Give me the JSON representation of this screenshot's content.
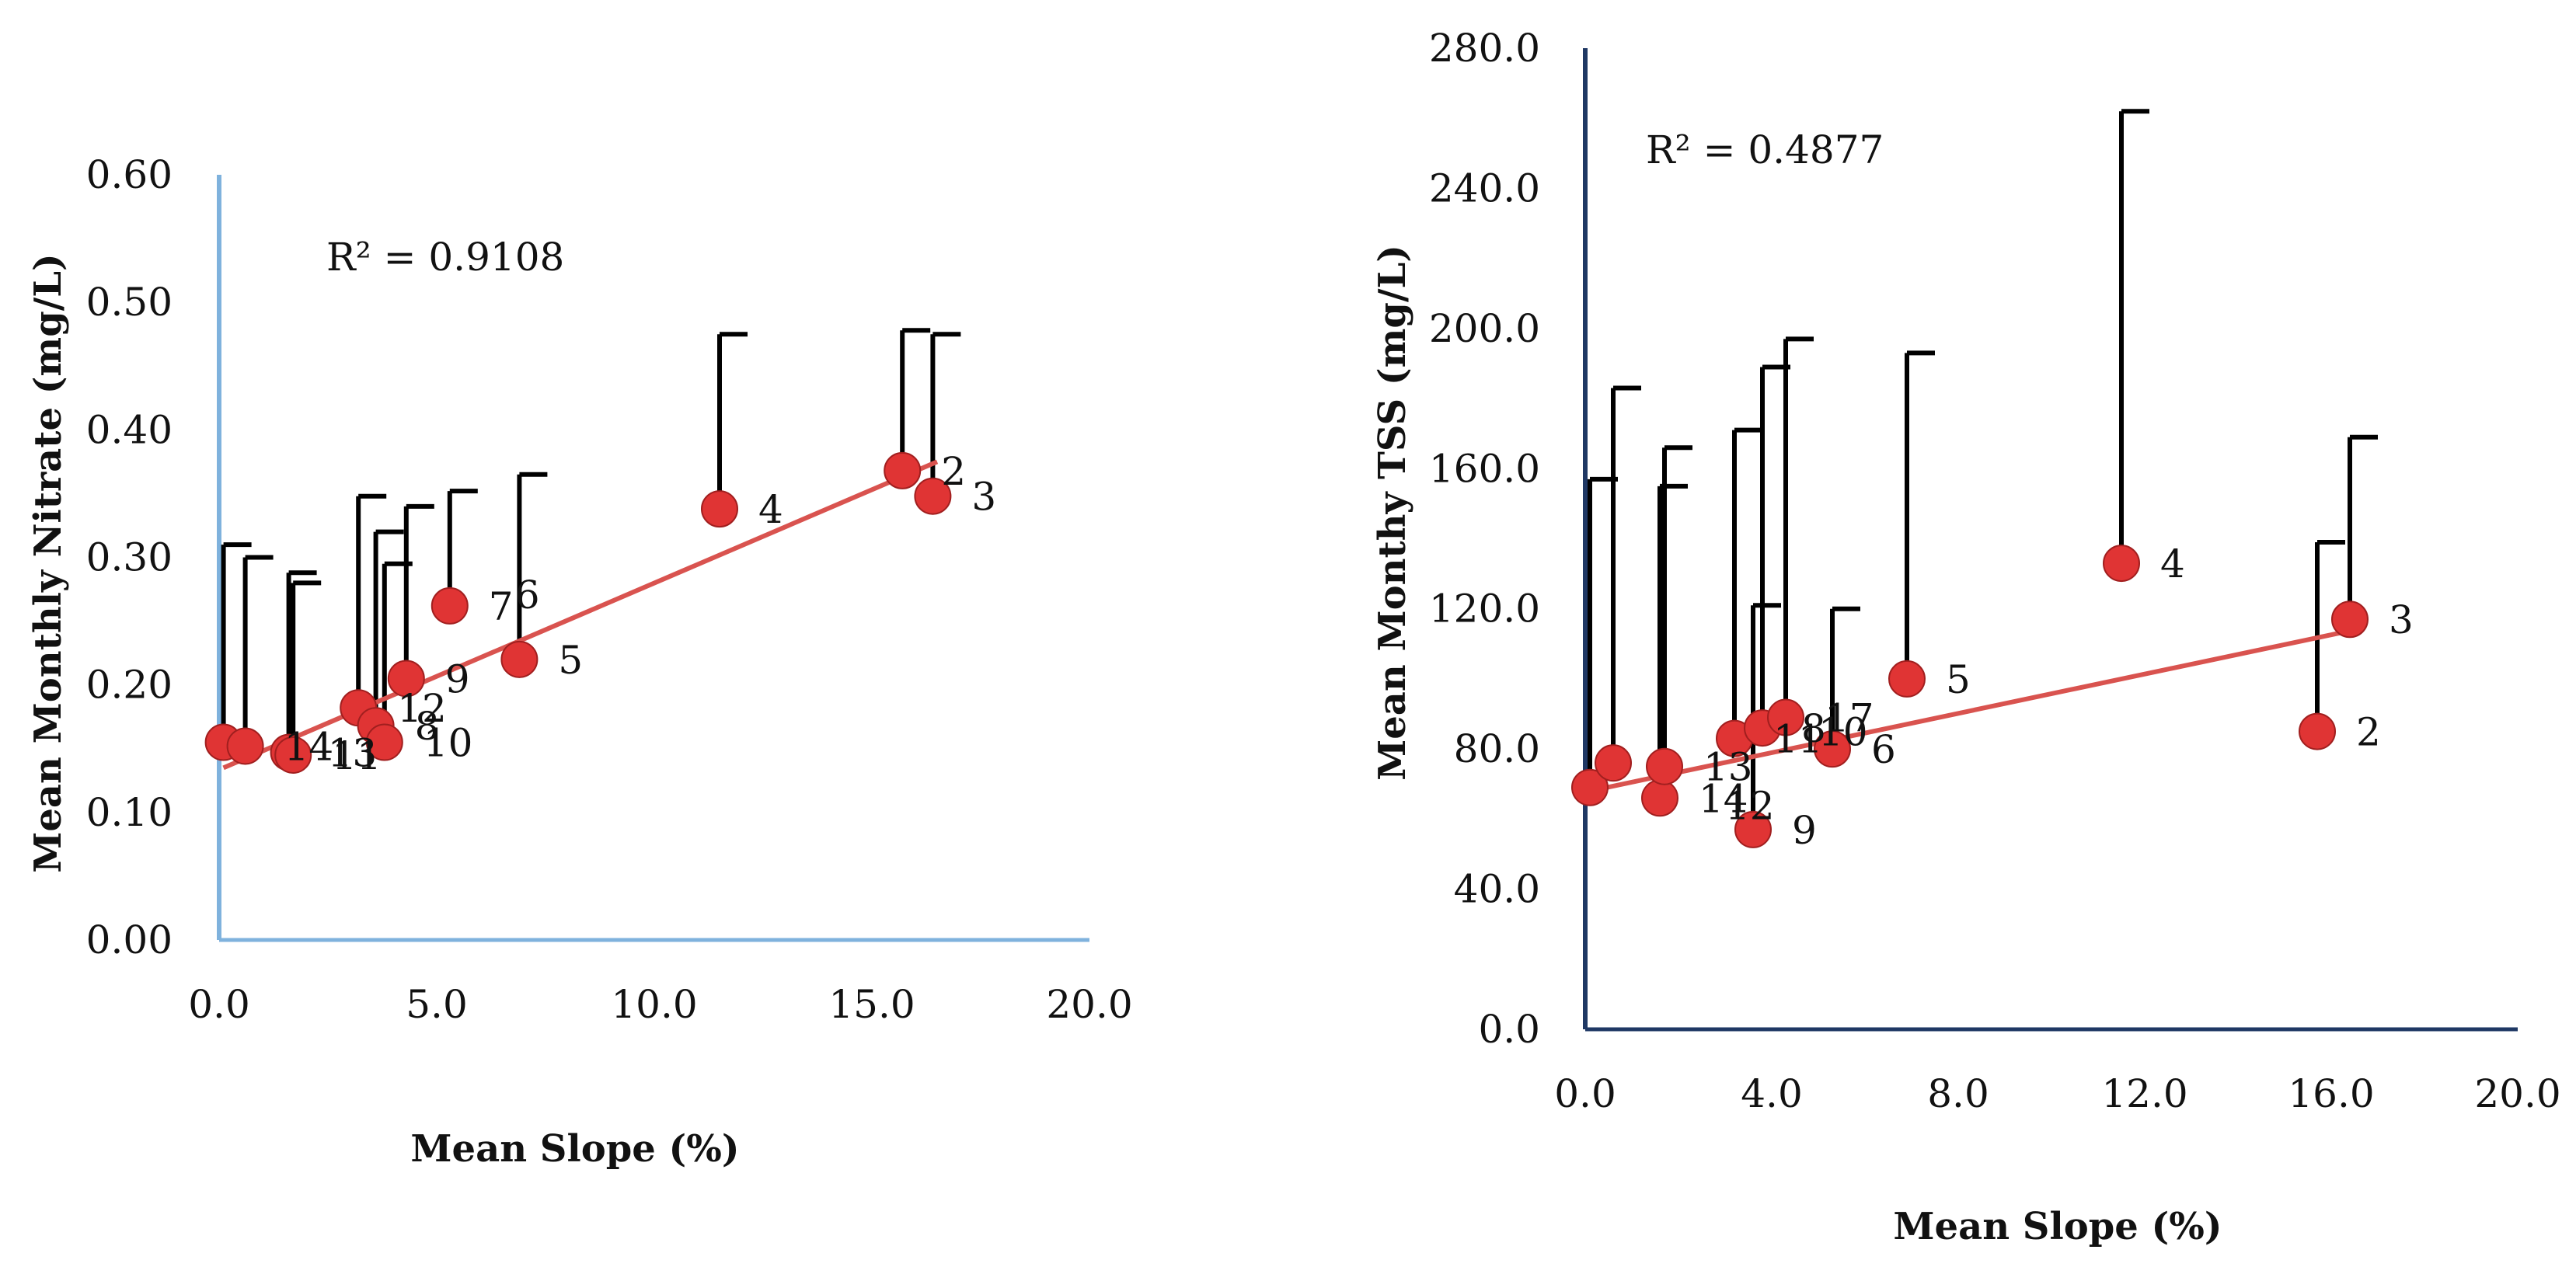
{
  "colors": {
    "left_axis": "#7fb2dd",
    "right_axis": "#1f3864",
    "marker": "#e03434",
    "trendline": "#d9534f",
    "error_bar": "#000000"
  },
  "chart_data": [
    {
      "type": "scatter",
      "title": "",
      "xlabel": "Mean Slope (%)",
      "ylabel": "Mean Monthly Nitrate (mg/L)",
      "xlim": [
        0,
        20
      ],
      "ylim": [
        0,
        0.6
      ],
      "x_ticks": [
        "0.0",
        "5.0",
        "10.0",
        "15.0",
        "20.0"
      ],
      "y_ticks": [
        "0.00",
        "0.10",
        "0.20",
        "0.30",
        "0.40",
        "0.50",
        "0.60"
      ],
      "r_squared": "R² = 0.9108",
      "trendline": {
        "x": [
          0.1,
          16.5
        ],
        "y": [
          0.135,
          0.375
        ]
      },
      "points": [
        {
          "x": 0.1,
          "y": 0.155,
          "err": 0.31,
          "label": ""
        },
        {
          "x": 0.6,
          "y": 0.152,
          "err": 0.3,
          "label": "14"
        },
        {
          "x": 1.6,
          "y": 0.147,
          "err": 0.288,
          "label": "13"
        },
        {
          "x": 1.7,
          "y": 0.145,
          "err": 0.28,
          "label": "11"
        },
        {
          "x": 3.2,
          "y": 0.182,
          "err": 0.348,
          "label": "12"
        },
        {
          "x": 3.6,
          "y": 0.168,
          "err": 0.32,
          "label": "8"
        },
        {
          "x": 3.8,
          "y": 0.155,
          "err": 0.295,
          "label": "10"
        },
        {
          "x": 4.3,
          "y": 0.205,
          "err": 0.34,
          "label": "9"
        },
        {
          "x": 5.3,
          "y": 0.262,
          "err": 0.352,
          "label": "7"
        },
        {
          "x": 6.9,
          "y": 0.22,
          "err": 0.365,
          "label": "5"
        },
        {
          "x": 11.5,
          "y": 0.338,
          "err": 0.475,
          "label": "4"
        },
        {
          "x": 15.7,
          "y": 0.368,
          "err": 0.478,
          "label": "2"
        },
        {
          "x": 16.4,
          "y": 0.348,
          "err": 0.475,
          "label": "3"
        }
      ],
      "floating_labels": [
        {
          "text": "6",
          "x": 6.8,
          "y": 0.26
        }
      ]
    },
    {
      "type": "scatter",
      "title": "",
      "xlabel": "Mean Slope (%)",
      "ylabel": "Mean Monthy TSS (mg/L)",
      "xlim": [
        0,
        20
      ],
      "ylim": [
        0,
        280
      ],
      "x_ticks": [
        "0.0",
        "4.0",
        "8.0",
        "12.0",
        "16.0",
        "20.0"
      ],
      "y_ticks": [
        "0.0",
        "40.0",
        "80.0",
        "120.0",
        "160.0",
        "200.0",
        "240.0",
        "280.0"
      ],
      "r_squared": "R² = 0.4877",
      "trendline": {
        "x": [
          0.1,
          16.5
        ],
        "y": [
          68,
          114
        ]
      },
      "points": [
        {
          "x": 0.1,
          "y": 69,
          "err": 157,
          "label": ""
        },
        {
          "x": 0.6,
          "y": 76,
          "err": 183,
          "label": ""
        },
        {
          "x": 1.6,
          "y": 66,
          "err": 155,
          "label": "14"
        },
        {
          "x": 1.7,
          "y": 75,
          "err": 166,
          "label": "13"
        },
        {
          "x": 3.2,
          "y": 83,
          "err": 171,
          "label": "11"
        },
        {
          "x": 3.6,
          "y": 57,
          "err": 121,
          "label": "9"
        },
        {
          "x": 3.8,
          "y": 86,
          "err": 189,
          "label": "8"
        },
        {
          "x": 4.3,
          "y": 89,
          "err": 197,
          "label": "17"
        },
        {
          "x": 5.3,
          "y": 80,
          "err": 120,
          "label": "6"
        },
        {
          "x": 6.9,
          "y": 100,
          "err": 193,
          "label": "5"
        },
        {
          "x": 11.5,
          "y": 133,
          "err": 262,
          "label": "4"
        },
        {
          "x": 15.7,
          "y": 85,
          "err": 139,
          "label": "2"
        },
        {
          "x": 16.4,
          "y": 117,
          "err": 169,
          "label": "3"
        }
      ],
      "floating_labels": [
        {
          "text": "12",
          "x": 3.0,
          "y": 60
        },
        {
          "text": "10",
          "x": 5.0,
          "y": 81
        }
      ]
    }
  ]
}
